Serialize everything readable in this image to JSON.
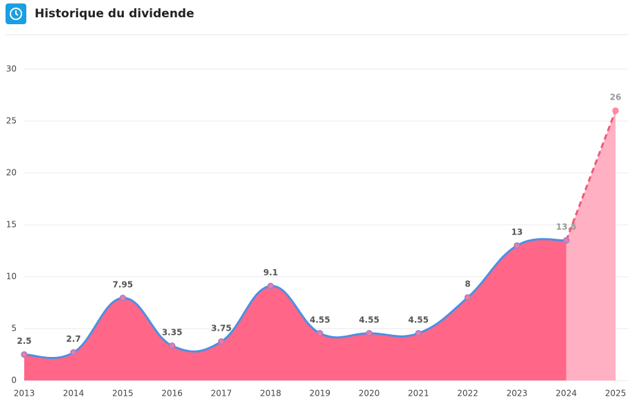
{
  "header": {
    "title": "Historique du dividende"
  },
  "chart_data": {
    "type": "area",
    "x": [
      2013,
      2014,
      2015,
      2016,
      2017,
      2018,
      2019,
      2020,
      2021,
      2022,
      2023,
      2024,
      2025
    ],
    "values": [
      2.5,
      2.7,
      7.95,
      3.35,
      3.75,
      9.1,
      4.55,
      4.55,
      4.55,
      8,
      13,
      13.5,
      26
    ],
    "xlim": [
      2013,
      2025
    ],
    "ylim": [
      0,
      30
    ],
    "yticks": [
      0,
      5,
      10,
      15,
      20,
      25,
      30
    ],
    "grid": true,
    "projection_start": 2024,
    "color": "#ff6688",
    "line_color": "#4a90e2",
    "projection_color": "#ffb0c2"
  }
}
